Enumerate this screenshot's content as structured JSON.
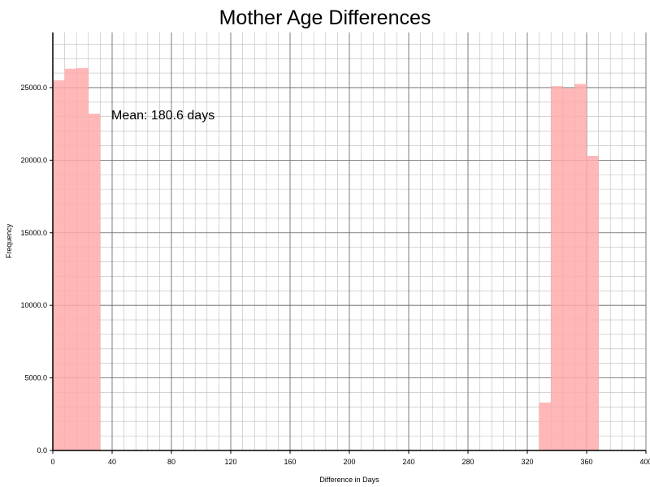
{
  "chart_data": {
    "type": "bar",
    "title": "Mother Age Differences",
    "xlabel": "Difference in Days",
    "ylabel": "Frequency",
    "annotation": "Mean: 180.6 days",
    "xlim": [
      0,
      400
    ],
    "ylim": [
      0,
      28800
    ],
    "x_ticks": [
      0,
      40,
      80,
      120,
      160,
      200,
      240,
      280,
      320,
      360,
      400
    ],
    "x_tick_labels": [
      "0",
      "40",
      "80",
      "120",
      "160",
      "200",
      "240",
      "280",
      "320",
      "360",
      "400"
    ],
    "y_ticks": [
      0,
      5000,
      10000,
      15000,
      20000,
      25000
    ],
    "y_tick_labels": [
      "0.0",
      "5000.0",
      "10000.0",
      "15000.0",
      "20000.0",
      "25000.0"
    ],
    "grid": true,
    "bar_color": "#ffaaaa",
    "bins": [
      {
        "start": 0,
        "end": 8,
        "value": 25500
      },
      {
        "start": 8,
        "end": 16,
        "value": 26300
      },
      {
        "start": 16,
        "end": 24,
        "value": 26350
      },
      {
        "start": 24,
        "end": 32,
        "value": 23200
      },
      {
        "start": 328,
        "end": 336,
        "value": 3300
      },
      {
        "start": 336,
        "end": 344,
        "value": 25100
      },
      {
        "start": 344,
        "end": 352,
        "value": 24950
      },
      {
        "start": 352,
        "end": 360,
        "value": 25250
      },
      {
        "start": 360,
        "end": 368,
        "value": 20300
      }
    ]
  }
}
